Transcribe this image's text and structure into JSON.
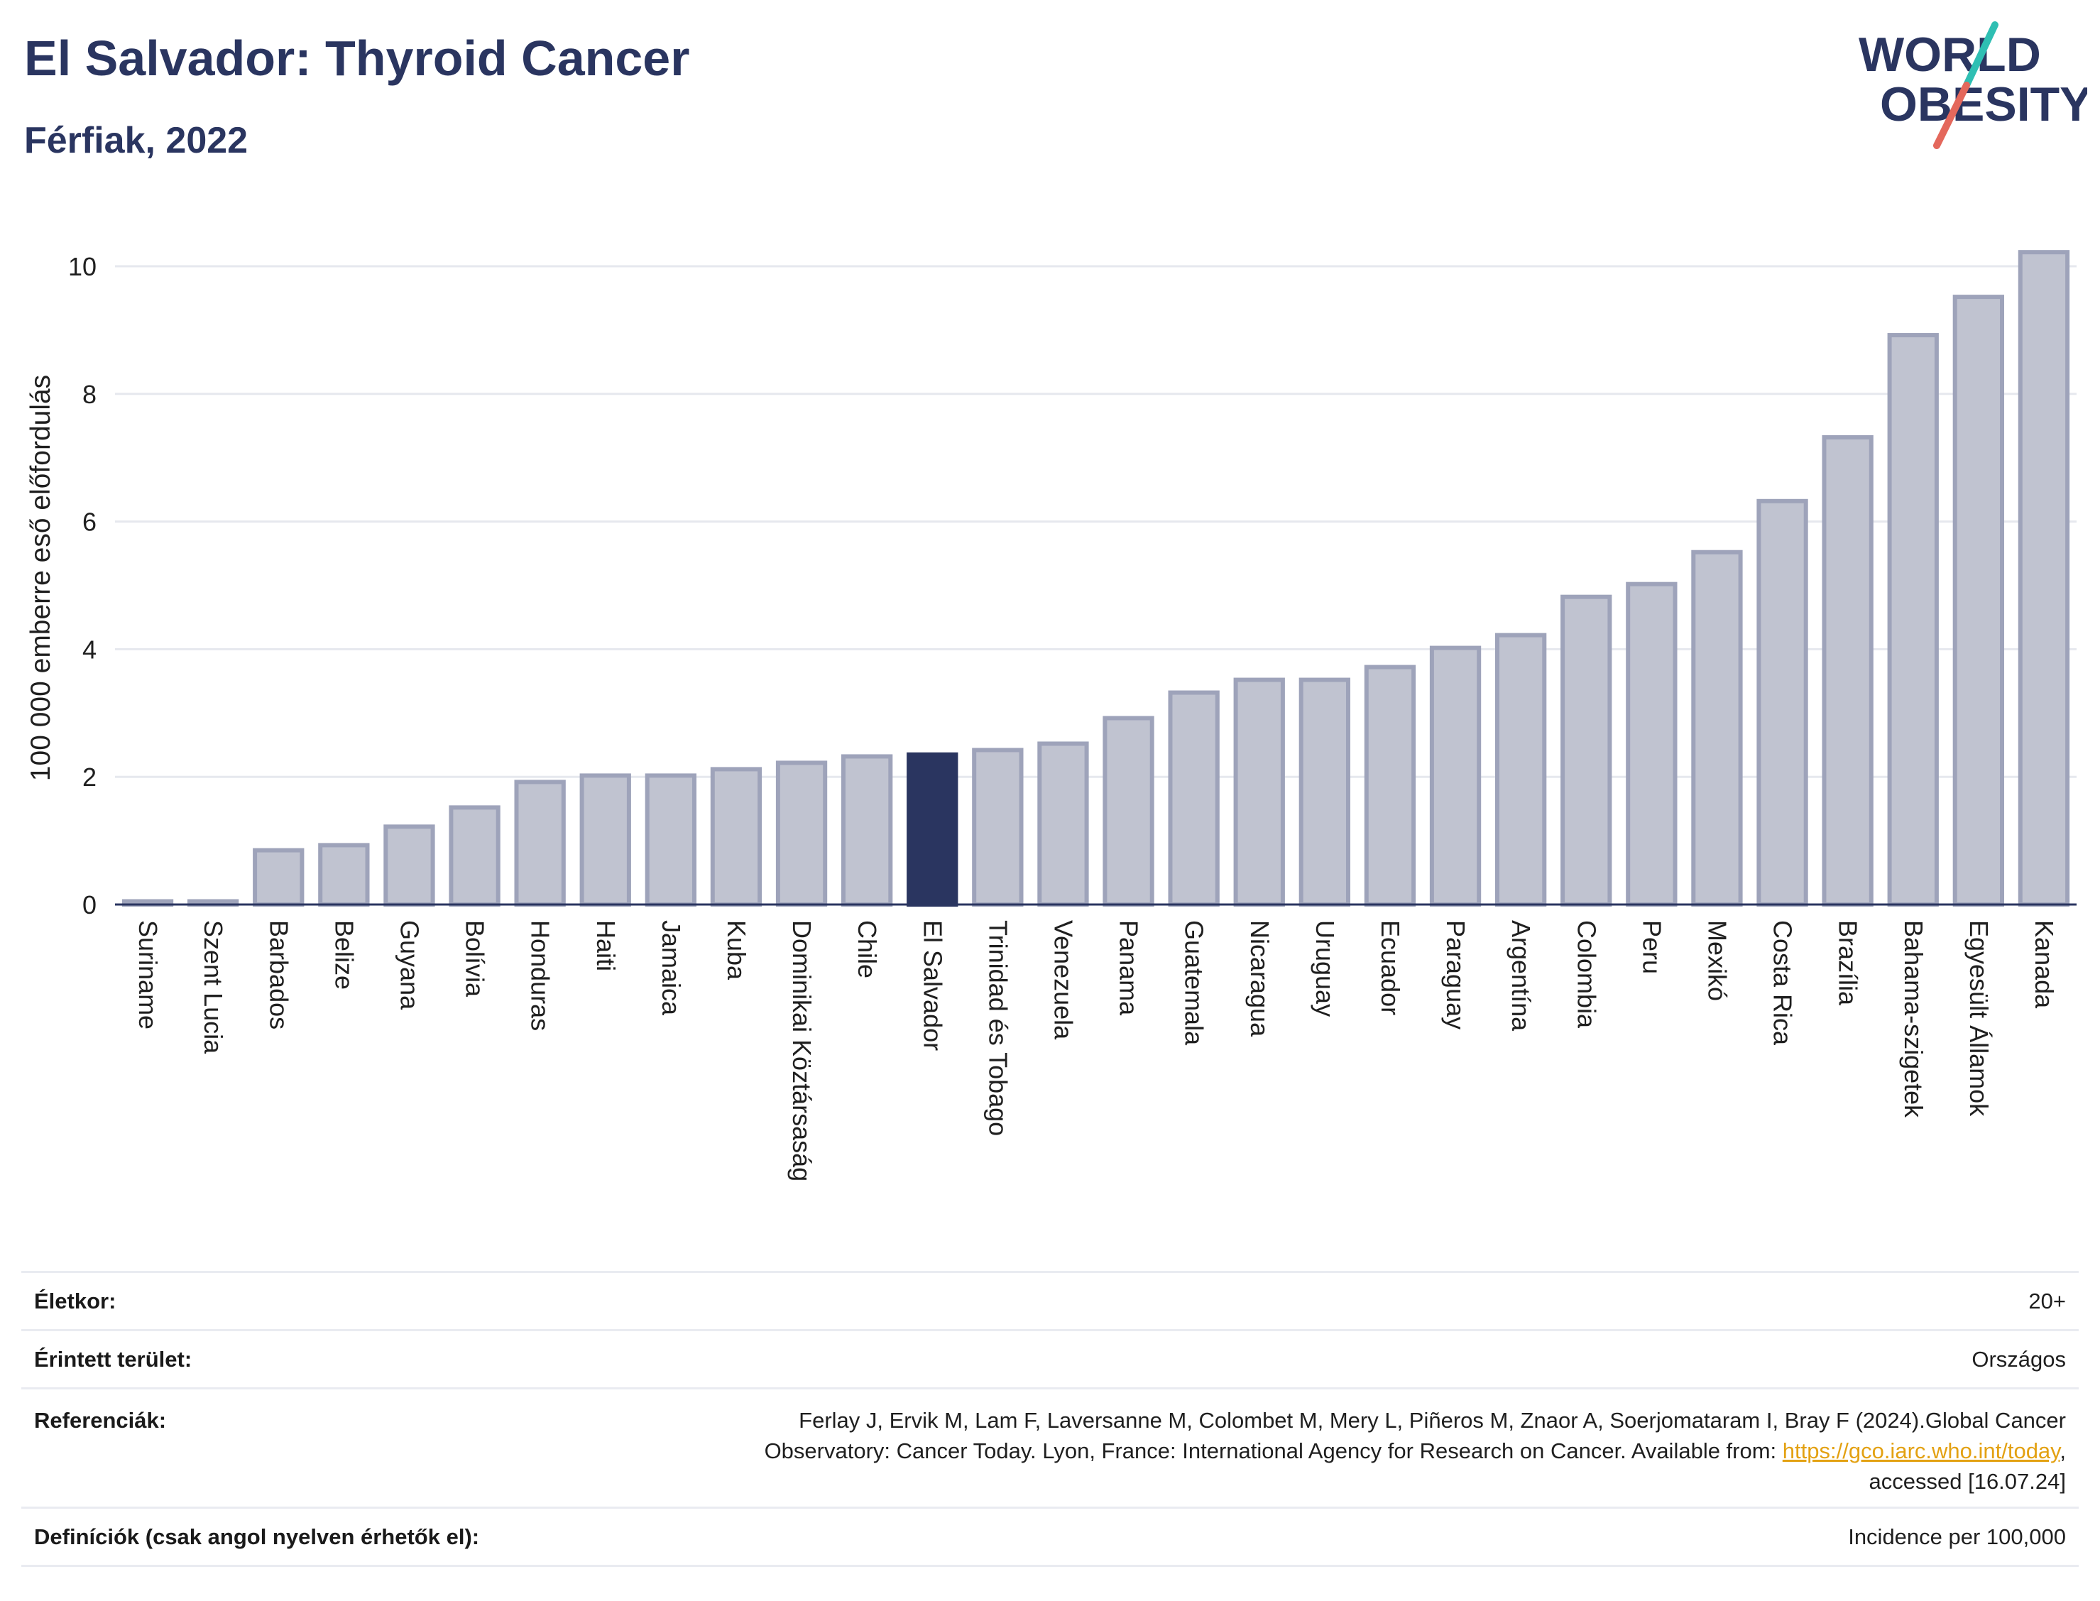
{
  "header": {
    "title": "El Salvador: Thyroid Cancer",
    "subtitle": "Férfiak, 2022"
  },
  "logo": {
    "line1": "WORLD",
    "line2": "OBESITY",
    "text_color": "#2a3560",
    "slash_colors": [
      "#2fbfb3",
      "#e4685c"
    ]
  },
  "chart_data": {
    "type": "bar",
    "ylabel": "100 000 emberre eső előfordulás",
    "xlabel": "",
    "ylim": [
      0,
      10.5
    ],
    "yticks": [
      0,
      2,
      4,
      6,
      8,
      10
    ],
    "grid": true,
    "highlight": "El Salvador",
    "colors": {
      "bar": "#c0c3d0",
      "bar_edge": "#9ea3ba",
      "highlight": "#2a3560"
    },
    "categories": [
      "Suriname",
      "Szent Lucia",
      "Barbados",
      "Belize",
      "Guyana",
      "Bolívia",
      "Honduras",
      "Haiti",
      "Jamaica",
      "Kuba",
      "Dominikai Köztársaság",
      "Chile",
      "El Salvador",
      "Trinidad és Tobago",
      "Venezuela",
      "Panama",
      "Guatemala",
      "Nicaragua",
      "Uruguay",
      "Ecuador",
      "Paraguay",
      "Argentína",
      "Colombia",
      "Peru",
      "Mexikó",
      "Costa Rica",
      "Brazília",
      "Bahama-szigetek",
      "Egyesült Államok",
      "Kanada"
    ],
    "values": [
      0.05,
      0.05,
      0.85,
      0.93,
      1.22,
      1.52,
      1.92,
      2.02,
      2.02,
      2.12,
      2.22,
      2.32,
      2.35,
      2.42,
      2.52,
      2.92,
      3.32,
      3.52,
      3.52,
      3.72,
      4.02,
      4.22,
      4.82,
      5.02,
      5.52,
      6.32,
      7.32,
      8.92,
      9.52,
      10.22
    ]
  },
  "meta": {
    "age_label": "Életkor:",
    "age_value": "20+",
    "area_label": "Érintett terület:",
    "area_value": "Országos",
    "ref_label": "Referenciák:",
    "ref_text_1": "Ferlay J, Ervik M, Lam F, Laversanne M, Colombet M, Mery L, Piñeros M, Znaor A, Soerjomataram I, Bray F (2024).Global Cancer",
    "ref_text_2": "Observatory: Cancer Today. Lyon, France: International Agency for Research on Cancer. Available from: ",
    "ref_link": "https://gco.iarc.who.int/today",
    "ref_text_3": ",",
    "ref_text_4": "accessed [16.07.24]",
    "def_label": "Definíciók (csak angol nyelven érhetők el):",
    "def_value": "Incidence per 100,000"
  }
}
